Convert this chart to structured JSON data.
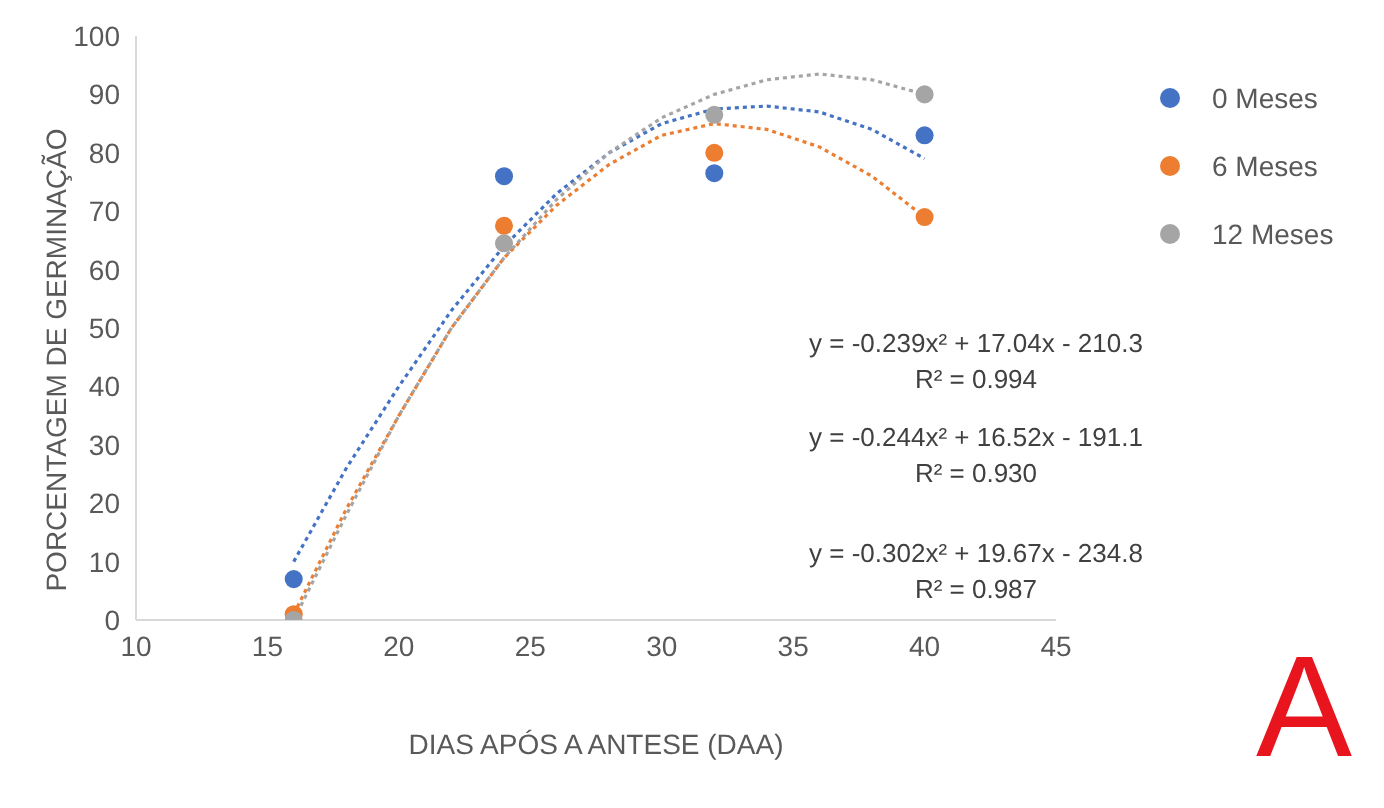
{
  "chart_data": {
    "type": "scatter",
    "xlabel": "DIAS APÓS A ANTESE (DAA)",
    "ylabel": "PORCENTAGEM DE GERMINAÇÃO",
    "xlim": [
      10,
      45
    ],
    "xticks": [
      10,
      15,
      20,
      25,
      30,
      35,
      40,
      45
    ],
    "ylim": [
      0,
      100
    ],
    "yticks": [
      0,
      10,
      20,
      30,
      40,
      50,
      60,
      70,
      80,
      90,
      100
    ],
    "grid": false,
    "legend": "right",
    "marker": "circle",
    "series": [
      {
        "name": "0 Meses",
        "color": "#4472c4",
        "x": [
          16,
          24,
          32,
          40
        ],
        "values": [
          7,
          76,
          76.5,
          83
        ]
      },
      {
        "name": "6 Meses",
        "color": "#ed7d31",
        "x": [
          16,
          24,
          32,
          40
        ],
        "values": [
          1,
          67.5,
          80,
          69
        ]
      },
      {
        "name": "12 Meses",
        "color": "#a5a5a5",
        "x": [
          16,
          24,
          32,
          40
        ],
        "values": [
          0,
          64.5,
          86.5,
          90
        ]
      },
      {
        "type": "line",
        "line_style": "dotted",
        "marker": "none",
        "color": "#4472c4",
        "x": [
          16,
          18,
          20,
          22,
          24,
          26,
          28,
          30,
          32,
          34,
          36,
          38,
          40
        ],
        "values": [
          10,
          26,
          40,
          53,
          64,
          73,
          80,
          85,
          87.5,
          88,
          87,
          84,
          79
        ]
      },
      {
        "type": "line",
        "line_style": "dotted",
        "marker": "none",
        "color": "#ed7d31",
        "x": [
          16,
          18,
          20,
          22,
          24,
          26,
          28,
          30,
          32,
          34,
          36,
          38,
          40
        ],
        "values": [
          1,
          19,
          35,
          50,
          62,
          71,
          78,
          83,
          85,
          84,
          81,
          76,
          69
        ]
      },
      {
        "type": "line",
        "line_style": "dotted",
        "marker": "none",
        "color": "#a5a5a5",
        "x": [
          16,
          18,
          20,
          22,
          24,
          26,
          28,
          30,
          32,
          34,
          36,
          38,
          40
        ],
        "values": [
          0,
          18,
          35,
          50,
          62,
          72,
          80,
          86,
          90,
          92.5,
          93.5,
          92.5,
          90
        ]
      }
    ],
    "annotations": [
      "y = -0.239x² + 17.04x - 210.3",
      "R² = 0.994",
      "y = -0.244x² + 16.52x - 191.1",
      "R² = 0.930",
      "y = -0.302x² + 19.67x - 234.8",
      "R² = 0.987",
      "A"
    ]
  }
}
